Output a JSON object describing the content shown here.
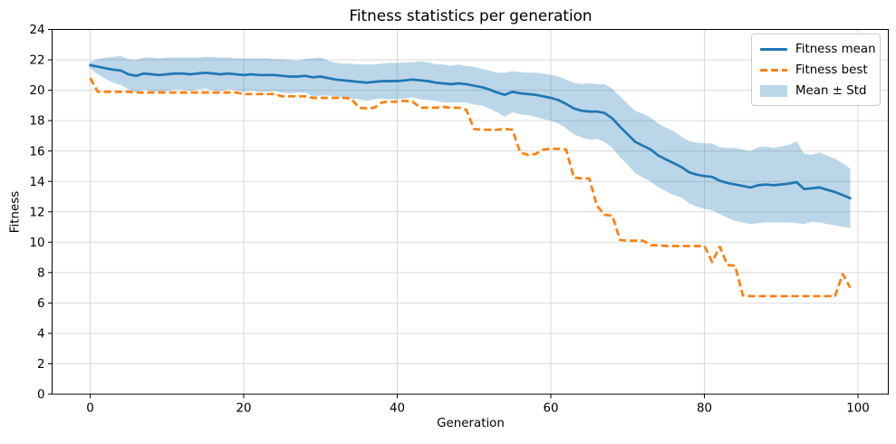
{
  "chart_data": {
    "type": "line",
    "title": "Fitness statistics per generation",
    "xlabel": "Generation",
    "ylabel": "Fitness",
    "xlim": [
      -4.95,
      103.95
    ],
    "ylim": [
      0,
      24
    ],
    "xticks": [
      0,
      20,
      40,
      60,
      80,
      100
    ],
    "yticks": [
      0,
      2,
      4,
      6,
      8,
      10,
      12,
      14,
      16,
      18,
      20,
      22,
      24
    ],
    "grid": true,
    "legend": {
      "position": "upper right",
      "entries": [
        "Fitness mean",
        "Fitness best",
        "Mean ± Std"
      ]
    },
    "colors": {
      "mean_line": "#1f77b4",
      "best_line": "#ff7f0e",
      "band": "#1f77b4",
      "band_alpha": 0.3,
      "grid": "#d9d9d9",
      "axes": "#000000",
      "text": "#000000",
      "background": "#ffffff"
    },
    "x": [
      0,
      1,
      2,
      3,
      4,
      5,
      6,
      7,
      8,
      9,
      10,
      11,
      12,
      13,
      14,
      15,
      16,
      17,
      18,
      19,
      20,
      21,
      22,
      23,
      24,
      25,
      26,
      27,
      28,
      29,
      30,
      31,
      32,
      33,
      34,
      35,
      36,
      37,
      38,
      39,
      40,
      41,
      42,
      43,
      44,
      45,
      46,
      47,
      48,
      49,
      50,
      51,
      52,
      53,
      54,
      55,
      56,
      57,
      58,
      59,
      60,
      61,
      62,
      63,
      64,
      65,
      66,
      67,
      68,
      69,
      70,
      71,
      72,
      73,
      74,
      75,
      76,
      77,
      78,
      79,
      80,
      81,
      82,
      83,
      84,
      85,
      86,
      87,
      88,
      89,
      90,
      91,
      92,
      93,
      94,
      95,
      96,
      97,
      98,
      99
    ],
    "series": [
      {
        "name": "Fitness mean",
        "type": "line",
        "style": "solid",
        "color": "#1f77b4",
        "values": [
          21.65,
          21.55,
          21.45,
          21.35,
          21.3,
          21.05,
          20.95,
          21.1,
          21.05,
          21.0,
          21.05,
          21.1,
          21.1,
          21.05,
          21.1,
          21.15,
          21.1,
          21.05,
          21.1,
          21.05,
          21.0,
          21.05,
          21.0,
          21.0,
          21.0,
          20.95,
          20.9,
          20.9,
          20.95,
          20.85,
          20.9,
          20.8,
          20.7,
          20.65,
          20.6,
          20.55,
          20.5,
          20.55,
          20.6,
          20.6,
          20.6,
          20.65,
          20.7,
          20.65,
          20.6,
          20.5,
          20.45,
          20.4,
          20.45,
          20.4,
          20.3,
          20.2,
          20.05,
          19.85,
          19.7,
          19.9,
          19.8,
          19.75,
          19.7,
          19.6,
          19.5,
          19.35,
          19.1,
          18.8,
          18.65,
          18.6,
          18.6,
          18.5,
          18.15,
          17.6,
          17.1,
          16.6,
          16.35,
          16.1,
          15.7,
          15.45,
          15.2,
          14.95,
          14.6,
          14.45,
          14.35,
          14.3,
          14.05,
          13.9,
          13.8,
          13.7,
          13.6,
          13.75,
          13.8,
          13.75,
          13.8,
          13.85,
          13.95,
          13.5,
          13.55,
          13.6,
          13.45,
          13.3,
          13.1,
          12.9
        ]
      },
      {
        "name": "Fitness best",
        "type": "line",
        "style": "dashed",
        "color": "#ff7f0e",
        "values": [
          20.8,
          19.9,
          19.9,
          19.9,
          19.9,
          19.9,
          19.85,
          19.85,
          19.85,
          19.85,
          19.85,
          19.85,
          19.85,
          19.85,
          19.85,
          19.85,
          19.85,
          19.85,
          19.85,
          19.85,
          19.75,
          19.75,
          19.75,
          19.75,
          19.75,
          19.6,
          19.6,
          19.6,
          19.6,
          19.5,
          19.5,
          19.5,
          19.5,
          19.5,
          19.45,
          18.85,
          18.8,
          18.85,
          19.2,
          19.25,
          19.25,
          19.3,
          19.25,
          18.85,
          18.85,
          18.85,
          18.9,
          18.85,
          18.85,
          18.7,
          17.45,
          17.4,
          17.4,
          17.4,
          17.45,
          17.4,
          15.9,
          15.75,
          15.8,
          16.1,
          16.15,
          16.15,
          16.1,
          14.25,
          14.2,
          14.2,
          12.4,
          11.8,
          11.75,
          10.15,
          10.1,
          10.1,
          10.1,
          9.8,
          9.8,
          9.75,
          9.75,
          9.75,
          9.75,
          9.75,
          9.75,
          8.7,
          9.7,
          8.5,
          8.45,
          6.5,
          6.45,
          6.45,
          6.45,
          6.45,
          6.45,
          6.45,
          6.45,
          6.45,
          6.45,
          6.45,
          6.45,
          6.45,
          7.9,
          7.0
        ]
      },
      {
        "name": "Mean ± Std",
        "type": "band",
        "color": "#1f77b4",
        "alpha": 0.3,
        "std": [
          0.22,
          0.5,
          0.7,
          0.85,
          0.95,
          1.0,
          1.05,
          1.05,
          1.1,
          1.1,
          1.1,
          1.05,
          1.05,
          1.1,
          1.05,
          1.05,
          1.1,
          1.1,
          1.05,
          1.05,
          1.1,
          1.05,
          1.1,
          1.1,
          1.05,
          1.1,
          1.1,
          1.05,
          1.1,
          1.25,
          1.25,
          1.15,
          1.1,
          1.1,
          1.15,
          1.15,
          1.2,
          1.15,
          1.15,
          1.2,
          1.2,
          1.2,
          1.15,
          1.25,
          1.25,
          1.2,
          1.25,
          1.2,
          1.25,
          1.2,
          1.25,
          1.2,
          1.25,
          1.3,
          1.45,
          1.35,
          1.4,
          1.4,
          1.45,
          1.5,
          1.5,
          1.55,
          1.6,
          1.7,
          1.75,
          1.85,
          1.8,
          1.9,
          1.95,
          2.0,
          2.0,
          2.05,
          2.1,
          2.1,
          2.1,
          2.1,
          2.1,
          2.0,
          2.05,
          2.1,
          2.15,
          2.2,
          2.2,
          2.3,
          2.4,
          2.4,
          2.4,
          2.5,
          2.5,
          2.45,
          2.5,
          2.55,
          2.7,
          2.3,
          2.2,
          2.3,
          2.25,
          2.2,
          2.1,
          1.95
        ]
      }
    ]
  }
}
